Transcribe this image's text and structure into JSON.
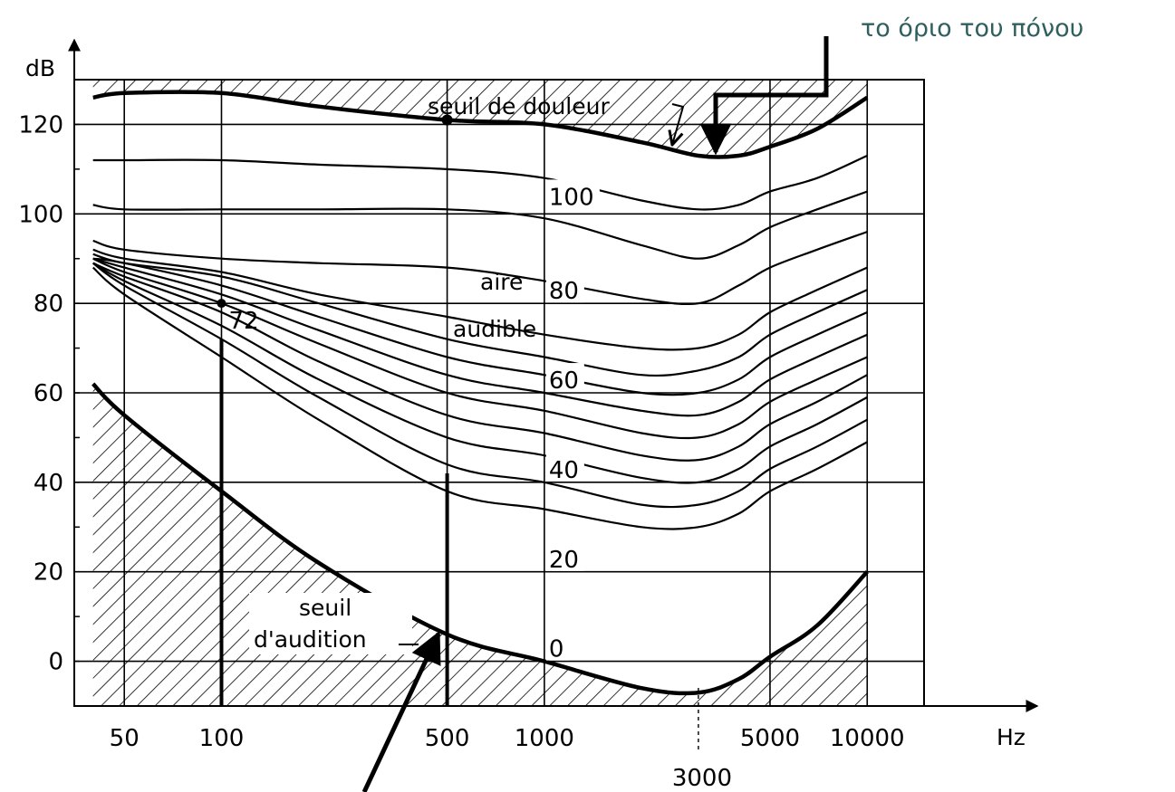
{
  "chart_data": {
    "type": "line",
    "title": "",
    "xlabel": "Hz",
    "ylabel": "dB",
    "x_scale": "log",
    "xlim": [
      35,
      15000
    ],
    "ylim": [
      -10,
      130
    ],
    "grid": true,
    "x_ticks": [
      {
        "value": 50,
        "label": "50"
      },
      {
        "value": 100,
        "label": "100"
      },
      {
        "value": 500,
        "label": "500"
      },
      {
        "value": 1000,
        "label": "1000"
      },
      {
        "value": 5000,
        "label": "5000"
      },
      {
        "value": 10000,
        "label": "10000"
      }
    ],
    "x_extra_tick": {
      "value": 3000,
      "label": "3000"
    },
    "y_ticks": [
      {
        "value": 0,
        "label": "0"
      },
      {
        "value": 20,
        "label": "20"
      },
      {
        "value": 40,
        "label": "40"
      },
      {
        "value": 60,
        "label": "60"
      },
      {
        "value": 80,
        "label": "80"
      },
      {
        "value": 100,
        "label": "100"
      },
      {
        "value": 120,
        "label": "120"
      }
    ],
    "x": [
      40,
      50,
      100,
      200,
      500,
      1000,
      2000,
      3000,
      4000,
      5000,
      7000,
      10000
    ],
    "threshold_hearing": [
      62,
      55,
      38,
      22,
      6,
      0,
      -6,
      -7,
      -4,
      1,
      8,
      20
    ],
    "threshold_pain": [
      126,
      127,
      127,
      124,
      121,
      120,
      116,
      113,
      113,
      115,
      119,
      126
    ],
    "contours": [
      [
        88,
        82,
        68,
        54,
        38,
        34,
        30,
        30,
        33,
        38,
        43,
        49
      ],
      [
        89,
        84,
        72,
        59,
        44,
        40,
        35,
        35,
        38,
        43,
        48,
        54
      ],
      [
        89,
        85,
        75,
        63,
        50,
        46,
        41,
        40,
        43,
        48,
        53,
        59
      ],
      [
        89,
        86,
        78,
        67,
        55,
        51,
        46,
        45,
        48,
        53,
        58,
        64
      ],
      [
        90,
        87,
        80,
        71,
        60,
        56,
        51,
        50,
        53,
        58,
        63,
        68
      ],
      [
        90,
        88,
        82,
        74,
        64,
        60,
        56,
        55,
        58,
        63,
        68,
        73
      ],
      [
        90,
        89,
        84,
        77,
        68,
        64,
        60,
        60,
        63,
        68,
        73,
        78
      ],
      [
        91,
        89,
        86,
        80,
        72,
        68,
        64,
        65,
        68,
        73,
        78,
        83
      ],
      [
        92,
        90,
        87,
        82,
        77,
        73,
        70,
        70,
        73,
        78,
        83,
        88
      ],
      [
        94,
        92,
        90,
        89,
        88,
        85,
        81,
        80,
        84,
        88,
        92,
        96
      ],
      [
        102,
        101,
        101,
        101,
        101,
        99,
        93,
        90,
        93,
        97,
        101,
        105
      ],
      [
        112,
        112,
        112,
        111,
        110,
        108,
        103,
        101,
        102,
        105,
        108,
        113
      ]
    ],
    "point": {
      "x": 100,
      "y": 80,
      "label": "72"
    },
    "point_pain": {
      "x": 500,
      "y": 121
    },
    "vertical_markers": [
      {
        "x": 100,
        "y_from": -10,
        "y_to": 72
      },
      {
        "x": 500,
        "y_from": -10,
        "y_to": 42
      }
    ],
    "contour_labels": [
      {
        "text": "100",
        "x": 1000,
        "y": 102
      },
      {
        "text": "80",
        "x": 1000,
        "y": 81
      },
      {
        "text": "60",
        "x": 1000,
        "y": 61
      },
      {
        "text": "40",
        "x": 1000,
        "y": 41
      },
      {
        "text": "20",
        "x": 1000,
        "y": 21
      },
      {
        "text": "0",
        "x": 1000,
        "y": 1
      }
    ],
    "annotations": {
      "pain_threshold": "seuil de douleur",
      "audible_line1": "aire",
      "audible_line2": "audible",
      "hearing_line1": "seuil",
      "hearing_line2": "d'audition",
      "pain_greek": "το όριο του πόνου"
    }
  }
}
